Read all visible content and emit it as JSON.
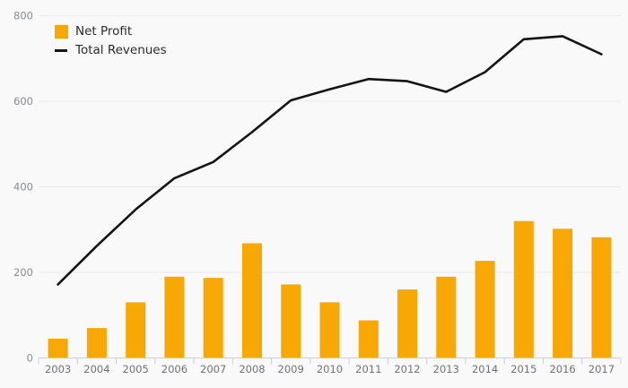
{
  "chart_data": {
    "type": "combo",
    "title": "",
    "xlabel": "",
    "ylabel": "",
    "categories": [
      "2003",
      "2004",
      "2005",
      "2006",
      "2007",
      "2008",
      "2009",
      "2010",
      "2011",
      "2012",
      "2013",
      "2014",
      "2015",
      "2016",
      "2017"
    ],
    "series": [
      {
        "name": "Net Profit",
        "type": "bar",
        "color": "#F7A804",
        "values": [
          45,
          70,
          130,
          190,
          187,
          268,
          172,
          130,
          88,
          160,
          190,
          227,
          320,
          302,
          282
        ]
      },
      {
        "name": "Total Revenues",
        "type": "line",
        "color": "#141414",
        "values": [
          172,
          262,
          347,
          420,
          458,
          528,
          602,
          628,
          652,
          647,
          622,
          668,
          745,
          752,
          710
        ]
      }
    ],
    "ylim": [
      0,
      800
    ],
    "yticks": [
      0,
      200,
      400,
      600,
      800
    ],
    "grid": "horizontal",
    "legend_position": "top-left",
    "colors": {
      "background": "#f9f9f9",
      "grid": "#e9e9e9",
      "axis": "#c7cde6",
      "y_tick_text": "#8b8d90",
      "x_tick_text": "#6f7276",
      "legend_text": "#2b2b2b"
    }
  }
}
